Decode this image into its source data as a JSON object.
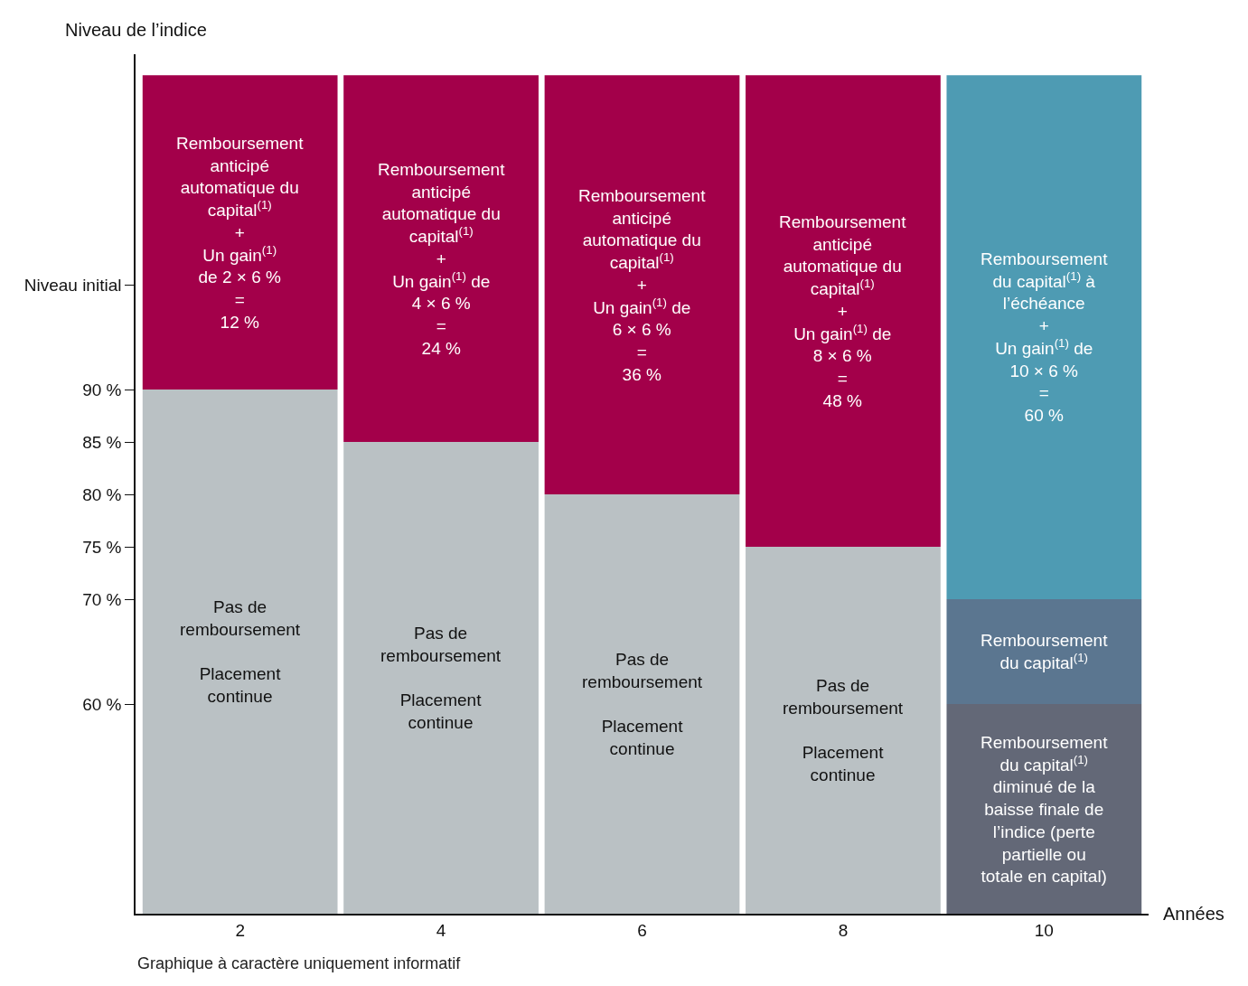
{
  "chart_data": {
    "type": "bar",
    "xlabel": "Années",
    "ylabel": "Niveau de l’indice",
    "categories": [
      "2",
      "4",
      "6",
      "8",
      "10"
    ],
    "series": [
      {
        "colors": [
          "#bac1c4",
          "#bac1c4",
          "#bac1c4",
          "#bac1c4",
          "#636877"
        ],
        "base": [
          40,
          40,
          40,
          40,
          40
        ],
        "values": [
          50,
          45,
          40,
          35,
          20
        ]
      },
      {
        "color": "#5b7690",
        "base": [
          null,
          null,
          null,
          null,
          60
        ],
        "values": [
          null,
          null,
          null,
          null,
          10
        ]
      },
      {
        "colors": [
          "#a3004a",
          "#a3004a",
          "#a3004a",
          "#a3004a",
          "#4e9bb3"
        ],
        "base": [
          90,
          85,
          80,
          75,
          70
        ],
        "values": [
          30,
          35,
          40,
          45,
          50
        ]
      }
    ],
    "ylim": [
      40,
      122
    ],
    "yticks": [
      {
        "value": 60,
        "label": "60 %"
      },
      {
        "value": 70,
        "label": "70 %"
      },
      {
        "value": 75,
        "label": "75 %"
      },
      {
        "value": 80,
        "label": "80 %"
      },
      {
        "value": 85,
        "label": "85 %"
      },
      {
        "value": 90,
        "label": "90 %"
      },
      {
        "value": 100,
        "label": "Niveau initial"
      }
    ],
    "annotations": [
      "Remboursement\nanticipé\nautomatique du\ncapital$^{(1)}$\n+\nUn gain$^{(1)}$\nde 2 × 6 %\n=\n12 %",
      "Remboursement\nanticipé\nautomatique du\ncapital$^{(1)}$\n+\nUn gain$^{(1)}$ de\n4 × 6 %\n=\n24 %",
      "Remboursement\nanticipé\nautomatique du\ncapital$^{(1)}$\n+\nUn gain$^{(1)}$ de\n6 × 6 %\n=\n36 %",
      "Remboursement\nanticipé\nautomatique du\ncapital$^{(1)}$\n+\nUn gain$^{(1)}$ de\n8 × 6 %\n=\n48 %",
      "Remboursement\ndu capital$^{(1)}$ à\nl’échéance\n+\nUn gain$^{(1)}$ de\n10 × 6 %\n=\n60 %",
      "Pas de\nremboursement\n\nPlacement\ncontinue",
      "Pas de\nremboursement\n\nPlacement\ncontinue",
      "Pas de\nremboursement\n\nPlacement\ncontinue",
      "Pas de\nremboursement\n\nPlacement\ncontinue",
      "Remboursement\ndu capital$^{(1)}$",
      "Remboursement\ndu capital$^{(1)}$\ndiminué de la\nbaisse finale de\nl’indice (perte\npartielle ou\ntotale en capital)",
      "Graphique à caractère uniquement informatif"
    ]
  }
}
